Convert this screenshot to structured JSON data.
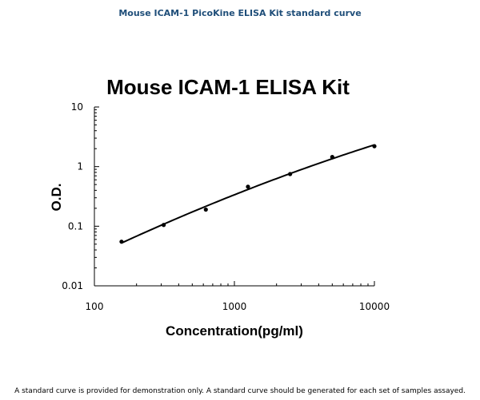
{
  "page": {
    "heading": "Mouse ICAM-1 PicoKine ELISA Kit standard curve",
    "footnote": "A standard curve is provided for demonstration only. A standard curve should be generated for each set of samples assayed."
  },
  "chart_data": {
    "type": "scatter",
    "title": "Mouse ICAM-1 ELISA Kit",
    "xlabel": "Concentration(pg/ml)",
    "ylabel": "O.D.",
    "xscale": "log",
    "yscale": "log",
    "xlim": [
      100,
      10000
    ],
    "ylim": [
      0.01,
      10
    ],
    "x_ticks": [
      100,
      1000,
      10000
    ],
    "x_tick_labels": [
      "100",
      "1000",
      "10000"
    ],
    "y_ticks": [
      0.01,
      0.1,
      1,
      10
    ],
    "y_tick_labels": [
      "0.01",
      "0.1",
      "1",
      "10"
    ],
    "grid": false,
    "legend": "none",
    "fit_line": true,
    "marker_color": "#000000",
    "series": [
      {
        "x": [
          156.25,
          312.5,
          625,
          1250,
          2500,
          5000,
          10000
        ],
        "y": [
          0.055,
          0.105,
          0.19,
          0.46,
          0.75,
          1.45,
          2.2
        ]
      }
    ]
  }
}
